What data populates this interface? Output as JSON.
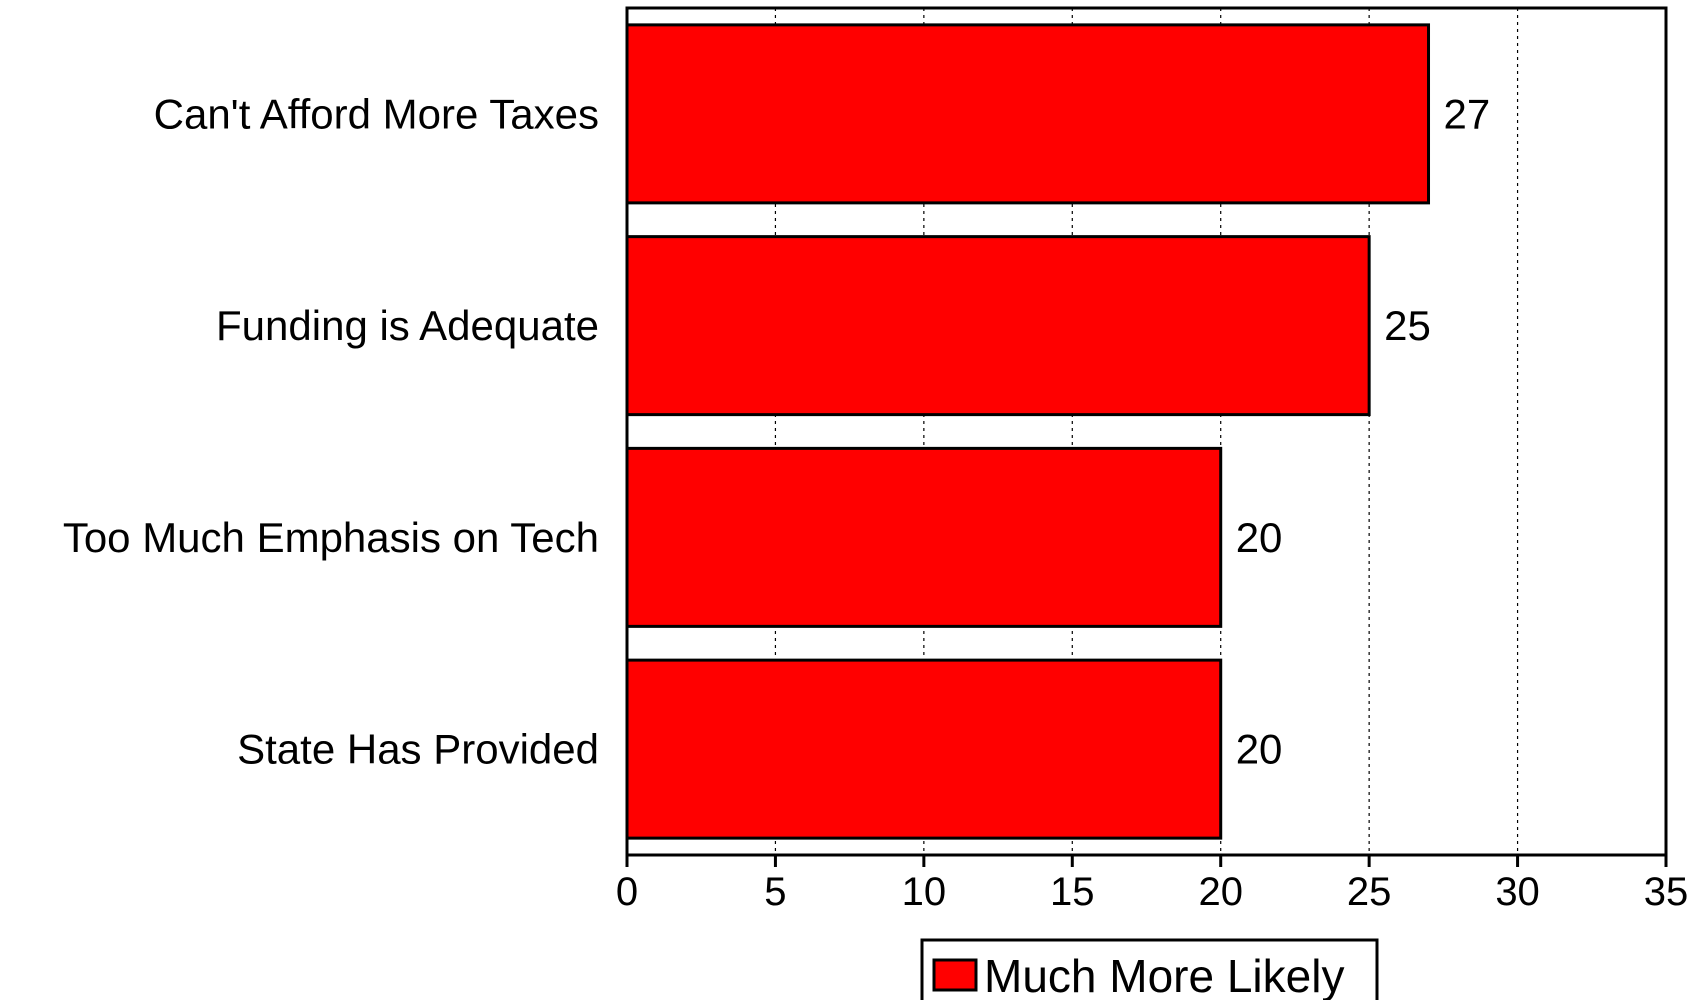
{
  "chart_data": {
    "type": "bar",
    "orientation": "horizontal",
    "categories": [
      "Can't Afford More Taxes",
      "Funding is Adequate",
      "Too Much Emphasis on Tech",
      "State Has Provided"
    ],
    "series": [
      {
        "name": "Much More Likely",
        "values": [
          27,
          25,
          20,
          20
        ],
        "color": "#ff0000"
      }
    ],
    "value_labels": [
      "27",
      "25",
      "20",
      "20"
    ],
    "xlim": [
      0,
      35
    ],
    "x_ticks": [
      0,
      5,
      10,
      15,
      20,
      25,
      30,
      35
    ],
    "x_tick_labels": [
      "0",
      "5",
      "10",
      "15",
      "20",
      "25",
      "30",
      "35"
    ],
    "grid": "vertical dotted",
    "legend_position": "bottom-center"
  }
}
